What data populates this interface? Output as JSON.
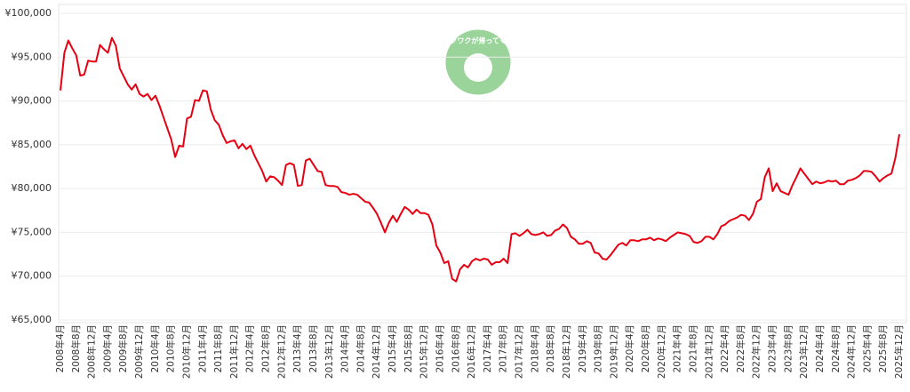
{
  "chart_data": {
    "type": "line",
    "logo_text": "ワクワクが帰ってくる",
    "categories": [
      "2008年4月",
      null,
      null,
      null,
      "2008年8月",
      null,
      null,
      null,
      "2008年12月",
      null,
      null,
      null,
      "2009年4月",
      null,
      null,
      null,
      "2009年8月",
      null,
      null,
      null,
      "2009年12月",
      null,
      null,
      null,
      "2010年4月",
      null,
      null,
      null,
      "2010年8月",
      null,
      null,
      null,
      "2010年12月",
      null,
      null,
      null,
      "2011年4月",
      null,
      null,
      null,
      "2011年8月",
      null,
      null,
      null,
      "2011年12月",
      null,
      null,
      null,
      "2012年4月",
      null,
      null,
      null,
      "2012年8月",
      null,
      null,
      null,
      "2012年12月",
      null,
      null,
      null,
      "2013年4月",
      null,
      null,
      null,
      "2013年8月",
      null,
      null,
      null,
      "2013年12月",
      null,
      null,
      null,
      "2014年4月",
      null,
      null,
      null,
      "2014年8月",
      null,
      null,
      null,
      "2014年12月",
      null,
      null,
      null,
      "2015年4月",
      null,
      null,
      null,
      "2015年8月",
      null,
      null,
      null,
      "2015年12月",
      null,
      null,
      null,
      "2016年4月",
      null,
      null,
      null,
      "2016年8月",
      null,
      null,
      null,
      "2016年12月",
      null,
      null,
      null,
      "2017年4月",
      null,
      null,
      null,
      "2017年8月",
      null,
      null,
      null,
      "2017年12月",
      null,
      null,
      null,
      "2018年4月",
      null,
      null,
      null,
      "2018年8月",
      null,
      null,
      null,
      "2018年12月",
      null,
      null,
      null,
      "2019年4月",
      null,
      null,
      null,
      "2019年8月",
      null,
      null,
      null,
      "2019年12月",
      null,
      null,
      null,
      "2020年4月",
      null,
      null,
      null,
      "2020年8月",
      null,
      null,
      null,
      "2020年12月",
      null,
      null,
      null,
      "2021年4月",
      null,
      null,
      null,
      "2021年8月",
      null,
      null,
      null,
      "2021年12月",
      null,
      null,
      null,
      "2022年4月",
      null,
      null,
      null,
      "2022年8月",
      null,
      null,
      null,
      "2022年12月",
      null,
      null,
      null,
      "2023年4月",
      null,
      null,
      null,
      "2023年8月",
      null,
      null,
      null,
      "2023年12月",
      null,
      null,
      null,
      "2024年4月",
      null,
      null,
      null,
      "2024年8月",
      null,
      null,
      null,
      "2024年12月",
      null,
      null,
      null,
      "2025年4月",
      null,
      null,
      null,
      "2025年8月",
      null,
      null,
      null,
      "2025年12月"
    ],
    "series": [
      {
        "color": "#e60012",
        "values": [
          91200,
          95500,
          96900,
          96000,
          95200,
          92900,
          93000,
          94600,
          94500,
          94500,
          96400,
          95900,
          95500,
          97200,
          96300,
          93700,
          92800,
          91900,
          91300,
          91900,
          90800,
          90500,
          90800,
          90100,
          90600,
          89500,
          88200,
          86900,
          85600,
          83600,
          84900,
          84800,
          88000,
          88200,
          90100,
          90000,
          91200,
          91100,
          89000,
          87800,
          87300,
          86100,
          85200,
          85400,
          85500,
          84600,
          85100,
          84500,
          84900,
          83800,
          82900,
          82000,
          80800,
          81400,
          81300,
          80900,
          80400,
          82700,
          82900,
          82700,
          80300,
          80400,
          83200,
          83400,
          82700,
          82000,
          81900,
          80400,
          80300,
          80300,
          80200,
          79600,
          79500,
          79300,
          79400,
          79300,
          78900,
          78500,
          78400,
          77800,
          77100,
          76100,
          75000,
          76100,
          76900,
          76200,
          77100,
          77900,
          77600,
          77100,
          77600,
          77200,
          77200,
          77000,
          75900,
          73500,
          72700,
          71500,
          71700,
          69700,
          69400,
          70800,
          71300,
          71000,
          71700,
          72000,
          71800,
          72000,
          71900,
          71300,
          71600,
          71600,
          72000,
          71500,
          74800,
          74900,
          74600,
          74900,
          75300,
          74800,
          74700,
          74800,
          75000,
          74600,
          74700,
          75200,
          75400,
          75900,
          75500,
          74500,
          74200,
          73700,
          73700,
          74000,
          73800,
          72700,
          72600,
          72000,
          71900,
          72400,
          73000,
          73600,
          73800,
          73500,
          74100,
          74100,
          74000,
          74200,
          74200,
          74400,
          74100,
          74300,
          74200,
          74000,
          74400,
          74700,
          75000,
          74900,
          74800,
          74600,
          73900,
          73800,
          74000,
          74500,
          74500,
          74200,
          74800,
          75700,
          75900,
          76300,
          76500,
          76700,
          77000,
          76900,
          76400,
          77100,
          78500,
          78800,
          81300,
          82300,
          79700,
          80600,
          79700,
          79500,
          79300,
          80400,
          81300,
          82300,
          81700,
          81100,
          80500,
          80800,
          80600,
          80700,
          80900,
          80800,
          80900,
          80500,
          80500,
          80900,
          81000,
          81200,
          81500,
          82000,
          82000,
          81900,
          81400,
          80800,
          81200,
          81500,
          81700,
          83500,
          86200
        ]
      }
    ],
    "ylim": [
      65000,
      100000
    ],
    "yticks": [
      {
        "value": 65000,
        "label": "¥65,000"
      },
      {
        "value": 70000,
        "label": "¥70,000"
      },
      {
        "value": 75000,
        "label": "¥75,000"
      },
      {
        "value": 80000,
        "label": "¥80,000"
      },
      {
        "value": 85000,
        "label": "¥85,000"
      },
      {
        "value": 90000,
        "label": "¥90,000"
      },
      {
        "value": 95000,
        "label": "¥95,000"
      },
      {
        "value": 100000,
        "label": "¥100,000"
      }
    ],
    "grid": true
  }
}
